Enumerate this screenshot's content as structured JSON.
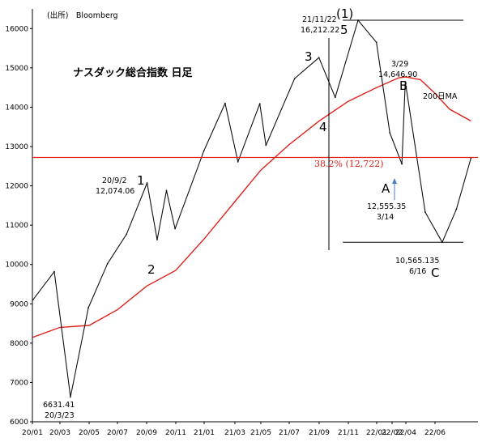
{
  "source": "(出所)　Bloomberg",
  "title": "ナスダック総合指数 日足",
  "chart_data": {
    "type": "line",
    "title": "ナスダック総合指数 日足",
    "ylim": [
      6000,
      16500
    ],
    "yticks": [
      "6000",
      "7000",
      "8000",
      "9000",
      "10000",
      "11000",
      "12000",
      "13000",
      "14000",
      "15000",
      "16000"
    ],
    "xticks": [
      "20/01",
      "20/03",
      "20/05",
      "20/07",
      "20/09",
      "20/11",
      "21/01",
      "21/03",
      "21/05",
      "21/07",
      "21/09",
      "21/11",
      "22/01",
      "22/02",
      "22/04",
      "22/06"
    ],
    "grid": false,
    "series": [
      {
        "name": "",
        "x": [
          "20/01/02",
          "20/02/19",
          "20/03/23",
          "20/04/30",
          "20/06/10",
          "20/07/20",
          "20/09/02",
          "20/09/23",
          "20/10/12",
          "20/10/30",
          "20/12/31",
          "21/02/12",
          "21/03/08",
          "21/04/29",
          "21/05/12",
          "21/07/12",
          "21/08/31",
          "21/10/04",
          "21/11/22",
          "21/12/31",
          "22/01/27",
          "22/03/14",
          "22/03/29",
          "22/05/11",
          "22/06/16",
          "22/07/15",
          "22/08/15"
        ],
        "values": [
          9100,
          9817,
          6631.41,
          8900,
          10020,
          10770,
          12074.06,
          10630,
          11880,
          10910,
          12890,
          14100,
          12610,
          14090,
          13030,
          14730,
          15260,
          14250,
          16212.22,
          15650,
          13350,
          12555.35,
          14646.9,
          11330,
          10565.135,
          11400,
          12700
        ]
      },
      {
        "name": "200日MA",
        "x": [
          "20/01/02",
          "20/03/01",
          "20/05/01",
          "20/07/01",
          "20/09/01",
          "20/11/01",
          "21/01/01",
          "21/03/01",
          "21/05/01",
          "21/07/01",
          "21/09/01",
          "21/11/01",
          "22/01/01",
          "22/03/01",
          "22/04/01",
          "22/05/01",
          "22/06/01",
          "22/07/01",
          "22/08/15"
        ],
        "values": [
          8150,
          8400,
          8450,
          8850,
          9450,
          9850,
          10650,
          11600,
          12400,
          13050,
          13650,
          14150,
          14500,
          14750,
          14770,
          14700,
          14350,
          13950,
          13650
        ]
      }
    ],
    "lines": [
      {
        "label": "38.2% (12,722)",
        "y": 12722,
        "color": "#e0201b"
      },
      {
        "label": "",
        "y": 16212.22,
        "color": "#000000"
      },
      {
        "label": "",
        "y": 10565.135,
        "color": "#000000"
      }
    ],
    "annotations": {
      "low_2020": {
        "value": "6631.41",
        "date": "20/3/23"
      },
      "w1": {
        "date": "20/9/2",
        "value": "12,074.06"
      },
      "peak": {
        "date": "21/11/22",
        "value": "16,212.22"
      },
      "b_peak": {
        "date": "3/29",
        "value": "14,646.90"
      },
      "a_low": {
        "value": "12,555.35",
        "date": "3/14"
      },
      "c_low": {
        "value": "10,565.135",
        "date": "6/16"
      },
      "waves": {
        "one": "1",
        "two": "2",
        "three": "3",
        "four": "4",
        "five": "5",
        "big_one": "(1)",
        "a": "A",
        "b": "B",
        "c": "C"
      },
      "ma_label": "200日MA"
    }
  }
}
